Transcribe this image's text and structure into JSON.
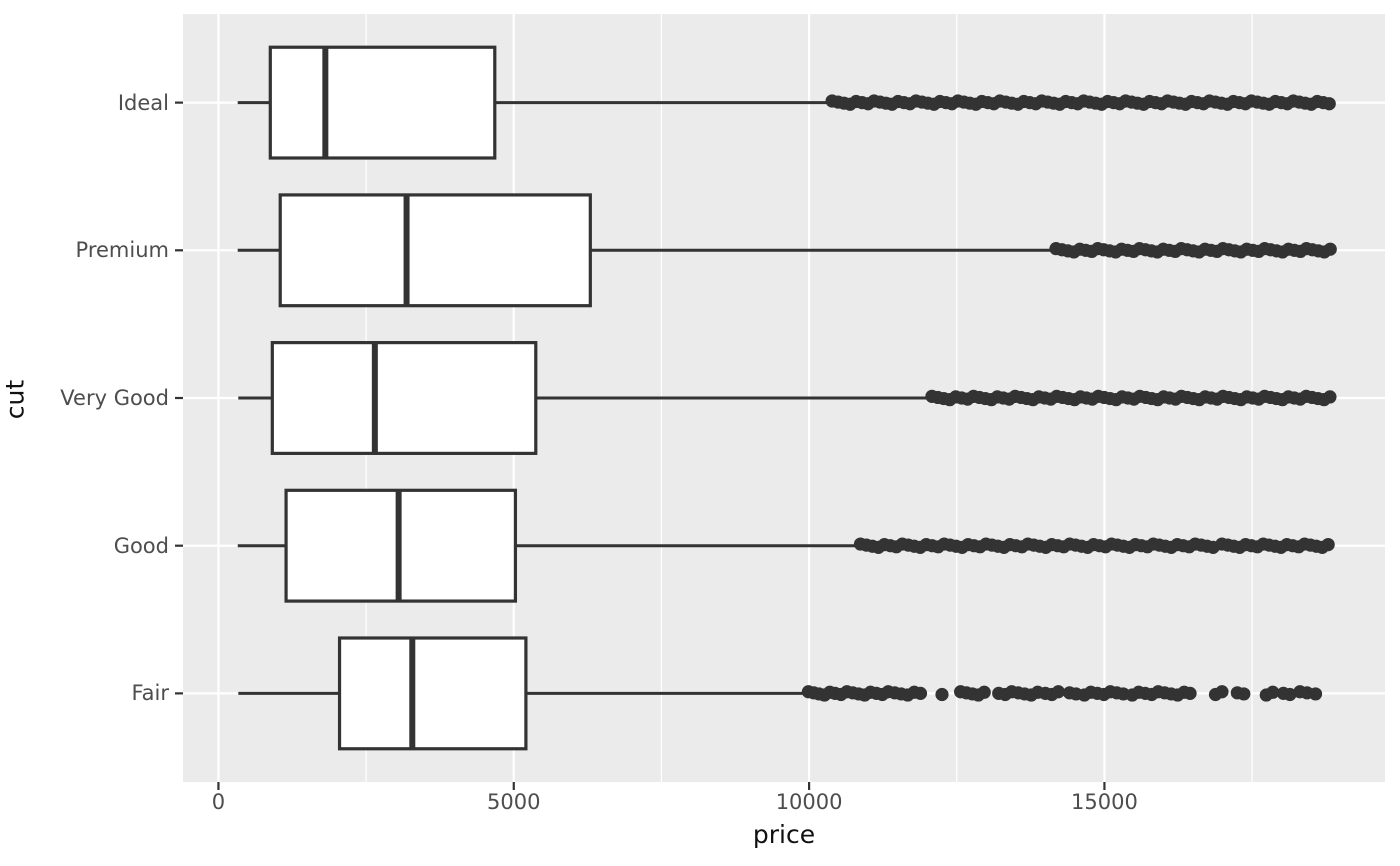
{
  "colors": {
    "panel_background": "#ebebeb",
    "grid": "#ffffff",
    "box_stroke": "#333333",
    "box_fill": "#ffffff",
    "outlier": "#333333",
    "tick_mark": "#333333",
    "tick_label": "#4d4d4d",
    "axis_title": "#111111"
  },
  "chart_data": {
    "type": "boxplot",
    "orientation": "horizontal",
    "title": "",
    "xlabel": "price",
    "ylabel": "cut",
    "x_range": [
      -600,
      19750
    ],
    "x_ticks": [
      0,
      5000,
      10000,
      15000
    ],
    "x_tick_labels": [
      "0",
      "5000",
      "10000",
      "15000"
    ],
    "x_minor_ticks": [
      2500,
      7500,
      12500,
      17500
    ],
    "grid": true,
    "categories_top_to_bottom": [
      "Ideal",
      "Premium",
      "Very Good",
      "Good",
      "Fair"
    ],
    "series": [
      {
        "name": "Ideal",
        "whisker_low": 326,
        "q1": 878,
        "median": 1810,
        "q3": 4678.5,
        "whisker_high": 10372,
        "outlier_bands": [
          [
            10390,
            18806
          ]
        ],
        "outlier_points": []
      },
      {
        "name": "Premium",
        "whisker_low": 326,
        "q1": 1046,
        "median": 3185,
        "q3": 6296,
        "whisker_high": 14160,
        "outlier_bands": [
          [
            14180,
            18823
          ]
        ],
        "outlier_points": []
      },
      {
        "name": "Very Good",
        "whisker_low": 336,
        "q1": 912,
        "median": 2648,
        "q3": 5372.75,
        "whisker_high": 12050,
        "outlier_bands": [
          [
            12080,
            18818
          ]
        ],
        "outlier_points": []
      },
      {
        "name": "Good",
        "whisker_low": 327,
        "q1": 1145,
        "median": 3050.5,
        "q3": 5028,
        "whisker_high": 10840,
        "outlier_bands": [
          [
            10870,
            16840
          ],
          [
            16990,
            18788
          ]
        ],
        "outlier_points": []
      },
      {
        "name": "Fair",
        "whisker_low": 337,
        "q1": 2050.25,
        "median": 3282,
        "q3": 5205.5,
        "whisker_high": 9899,
        "outlier_bands": [],
        "outlier_points": [
          9988,
          10080,
          10170,
          10260,
          10350,
          10440,
          10540,
          10640,
          10740,
          10840,
          10940,
          11040,
          11140,
          11240,
          11340,
          11450,
          11560,
          11670,
          11780,
          11886,
          12250,
          12565,
          12665,
          12765,
          12865,
          12965,
          13210,
          13320,
          13430,
          13540,
          13650,
          13760,
          13870,
          14000,
          14110,
          14220,
          14410,
          14520,
          14660,
          14770,
          14880,
          14990,
          15100,
          15210,
          15320,
          15470,
          15580,
          15690,
          15800,
          15910,
          16020,
          16130,
          16240,
          16350,
          16450,
          16880,
          16990,
          17250,
          17360,
          17740,
          17850,
          18030,
          18140,
          18310,
          18430,
          18574
        ]
      }
    ]
  }
}
